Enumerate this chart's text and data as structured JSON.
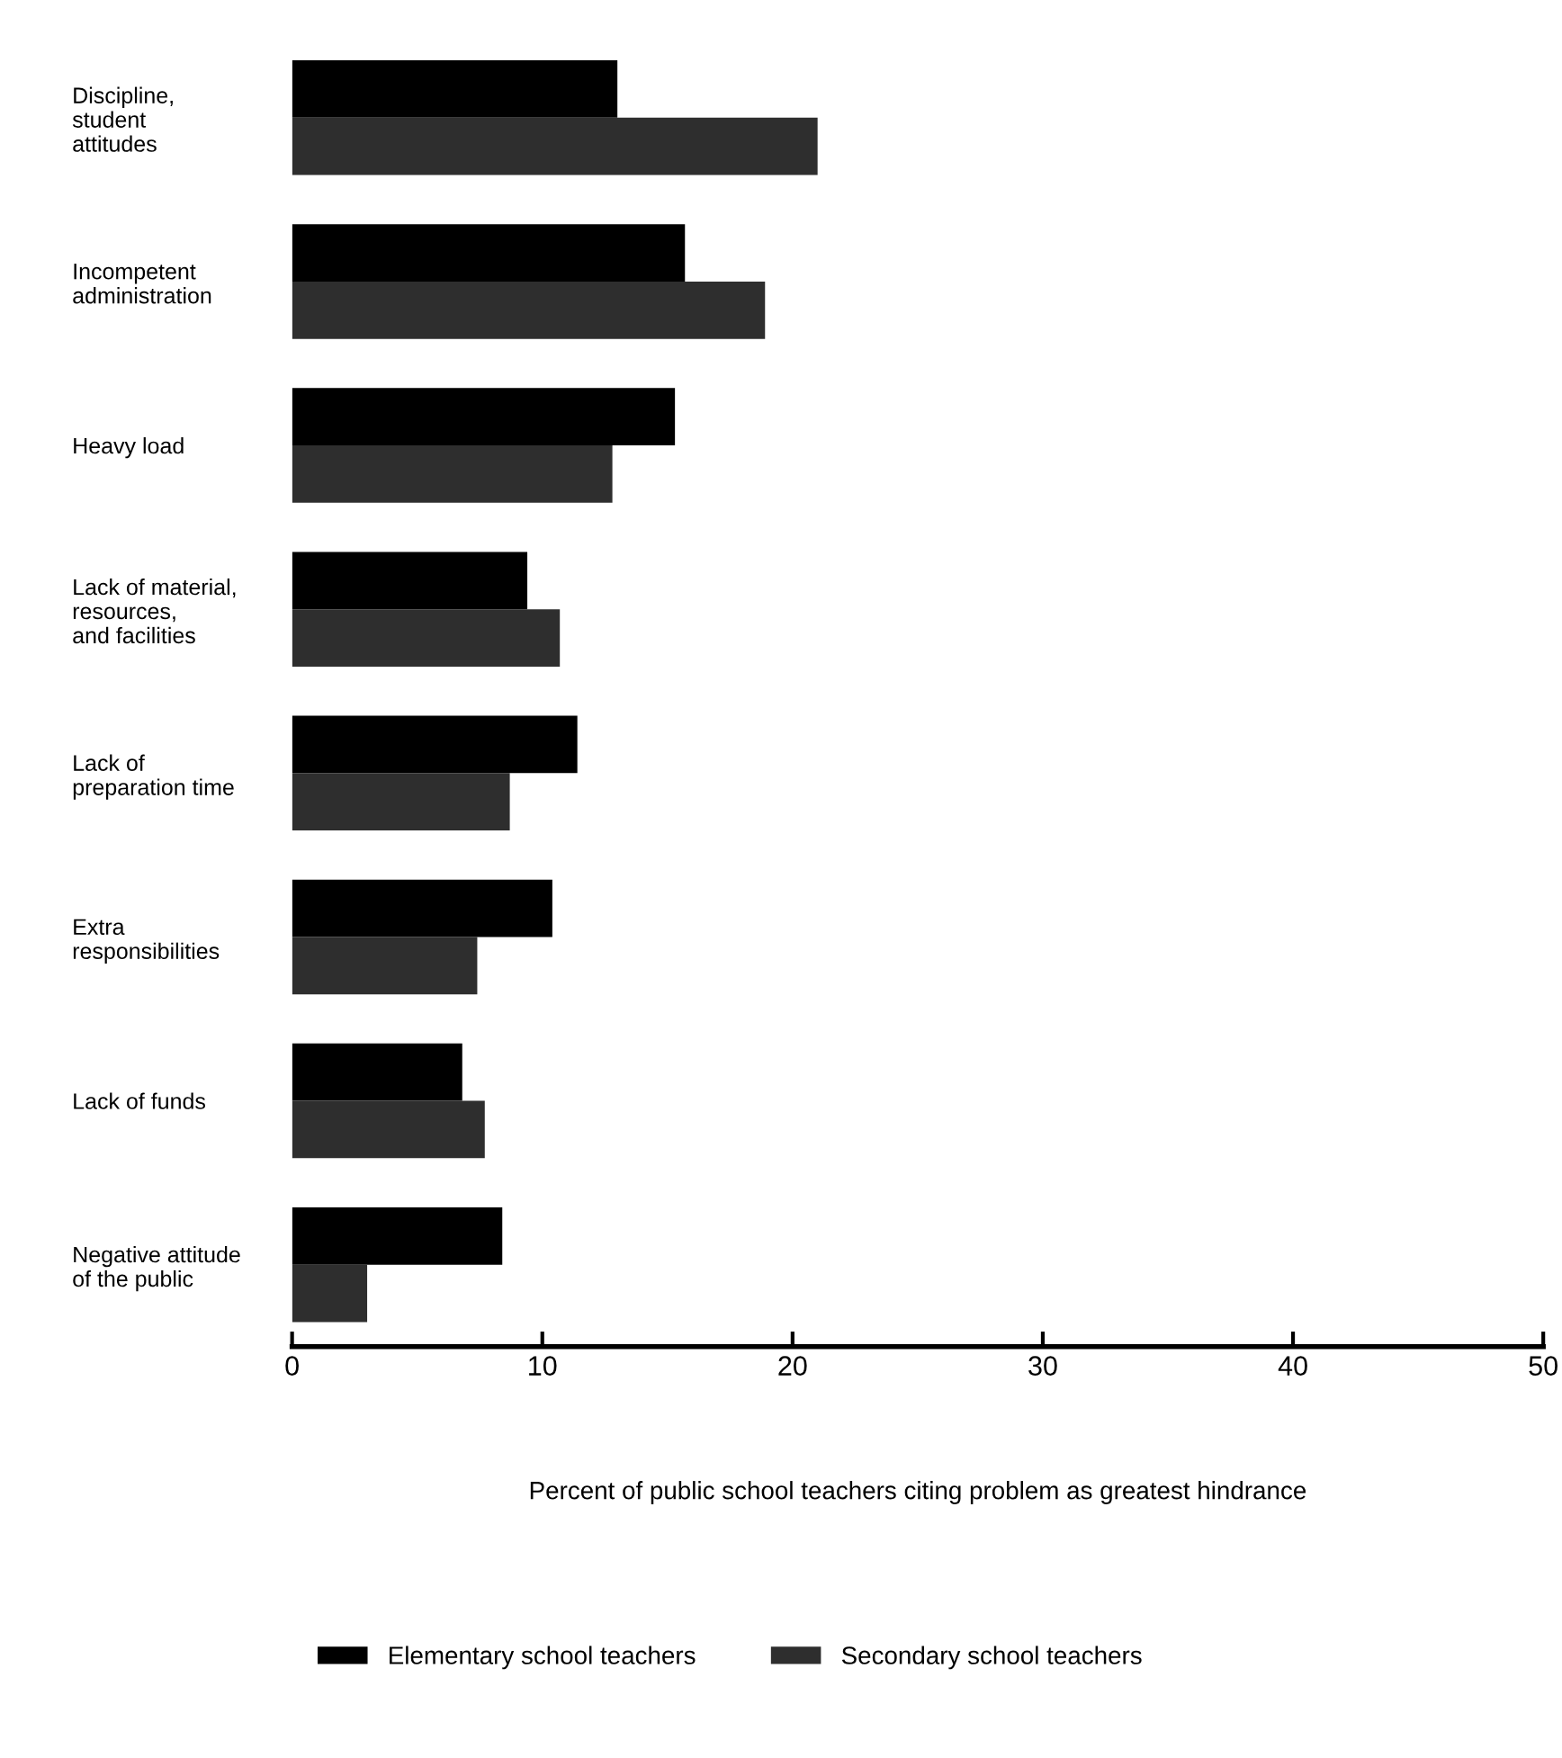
{
  "chart_data": {
    "type": "bar",
    "orientation": "horizontal",
    "categories": [
      "Discipline,\nstudent\nattitudes",
      "Incompetent\nadministration",
      "Heavy load",
      "Lack of material,\nresources,\nand facilities",
      "Lack of\npreparation time",
      "Extra\nresponsibilities",
      "Lack of funds",
      "Negative attitude\nof the public"
    ],
    "series": [
      {
        "name": "Elementary school teachers",
        "color": "#000000",
        "values": [
          13.0,
          15.7,
          15.3,
          9.4,
          11.4,
          10.4,
          6.8,
          8.4
        ]
      },
      {
        "name": "Secondary school teachers",
        "color": "#2e2e2e",
        "values": [
          21.0,
          18.9,
          12.8,
          10.7,
          8.7,
          7.4,
          7.7,
          3.0
        ]
      }
    ],
    "xlabel": "Percent of public school teachers citing problem as greatest hindrance",
    "xlim": [
      0,
      50
    ],
    "xticks": [
      0,
      10,
      20,
      30,
      40,
      50
    ],
    "grid": false,
    "legend": "bottom"
  }
}
